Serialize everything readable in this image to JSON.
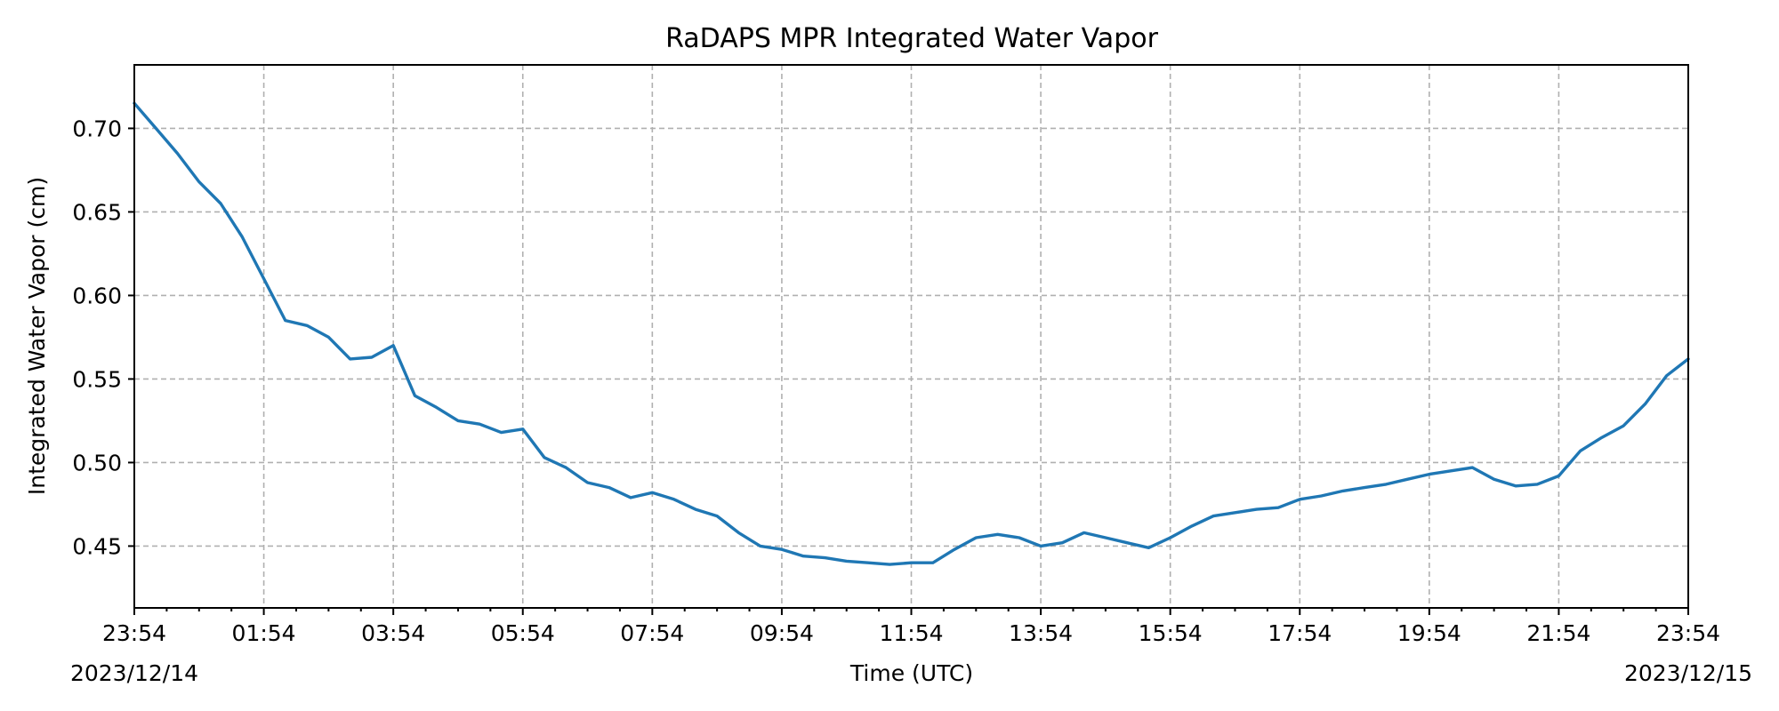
{
  "chart_data": {
    "type": "line",
    "title": "RaDAPS MPR Integrated Water Vapor",
    "xlabel": "Time (UTC)",
    "ylabel": "Integrated Water Vapor (cm)",
    "x_start": "2023/12/14 23:54",
    "x_end": "2023/12/15 23:54",
    "x_tick_labels": [
      "23:54",
      "01:54",
      "03:54",
      "05:54",
      "07:54",
      "09:54",
      "11:54",
      "13:54",
      "15:54",
      "17:54",
      "19:54",
      "21:54",
      "23:54"
    ],
    "x_date_labels": {
      "start": "2023/12/14",
      "end": "2023/12/15"
    },
    "ylim": [
      0.413,
      0.738
    ],
    "y_ticks": [
      0.45,
      0.5,
      0.55,
      0.6,
      0.65,
      0.7
    ],
    "y_tick_labels": [
      "0.45",
      "0.50",
      "0.55",
      "0.60",
      "0.65",
      "0.70"
    ],
    "grid": true,
    "color": "#1f77b4",
    "series": [
      {
        "x": [
          "2023/12/14 23:54",
          "2023/12/15 00:14",
          "2023/12/15 00:34",
          "2023/12/15 00:54",
          "2023/12/15 01:14",
          "2023/12/15 01:34",
          "2023/12/15 01:54",
          "2023/12/15 02:14",
          "2023/12/15 02:34",
          "2023/12/15 02:54",
          "2023/12/15 03:14",
          "2023/12/15 03:34",
          "2023/12/15 03:54",
          "2023/12/15 04:14",
          "2023/12/15 04:34",
          "2023/12/15 04:54",
          "2023/12/15 05:14",
          "2023/12/15 05:34",
          "2023/12/15 05:54",
          "2023/12/15 06:14",
          "2023/12/15 06:34",
          "2023/12/15 06:54",
          "2023/12/15 07:14",
          "2023/12/15 07:34",
          "2023/12/15 07:54",
          "2023/12/15 08:14",
          "2023/12/15 08:34",
          "2023/12/15 08:54",
          "2023/12/15 09:14",
          "2023/12/15 09:34",
          "2023/12/15 09:54",
          "2023/12/15 10:14",
          "2023/12/15 10:34",
          "2023/12/15 10:54",
          "2023/12/15 11:14",
          "2023/12/15 11:34",
          "2023/12/15 11:54",
          "2023/12/15 12:14",
          "2023/12/15 12:34",
          "2023/12/15 12:54",
          "2023/12/15 13:14",
          "2023/12/15 13:34",
          "2023/12/15 13:54",
          "2023/12/15 14:14",
          "2023/12/15 14:34",
          "2023/12/15 14:54",
          "2023/12/15 15:14",
          "2023/12/15 15:34",
          "2023/12/15 15:54",
          "2023/12/15 16:14",
          "2023/12/15 16:34",
          "2023/12/15 16:54",
          "2023/12/15 17:14",
          "2023/12/15 17:34",
          "2023/12/15 17:54",
          "2023/12/15 18:14",
          "2023/12/15 18:34",
          "2023/12/15 18:54",
          "2023/12/15 19:14",
          "2023/12/15 19:34",
          "2023/12/15 19:54",
          "2023/12/15 20:14",
          "2023/12/15 20:34",
          "2023/12/15 20:54",
          "2023/12/15 21:14",
          "2023/12/15 21:34",
          "2023/12/15 21:54",
          "2023/12/15 22:14",
          "2023/12/15 22:34",
          "2023/12/15 22:54",
          "2023/12/15 23:14",
          "2023/12/15 23:34",
          "2023/12/15 23:54"
        ],
        "y": [
          0.715,
          0.7,
          0.685,
          0.668,
          0.655,
          0.635,
          0.61,
          0.585,
          0.582,
          0.575,
          0.562,
          0.563,
          0.57,
          0.54,
          0.533,
          0.525,
          0.523,
          0.518,
          0.52,
          0.503,
          0.497,
          0.488,
          0.485,
          0.479,
          0.482,
          0.478,
          0.472,
          0.468,
          0.458,
          0.45,
          0.448,
          0.444,
          0.443,
          0.441,
          0.44,
          0.439,
          0.44,
          0.44,
          0.448,
          0.455,
          0.457,
          0.455,
          0.45,
          0.452,
          0.458,
          0.455,
          0.452,
          0.449,
          0.455,
          0.462,
          0.468,
          0.47,
          0.472,
          0.473,
          0.478,
          0.48,
          0.483,
          0.485,
          0.487,
          0.49,
          0.493,
          0.495,
          0.497,
          0.49,
          0.486,
          0.487,
          0.492,
          0.507,
          0.515,
          0.522,
          0.535,
          0.552,
          0.562
        ]
      }
    ]
  }
}
